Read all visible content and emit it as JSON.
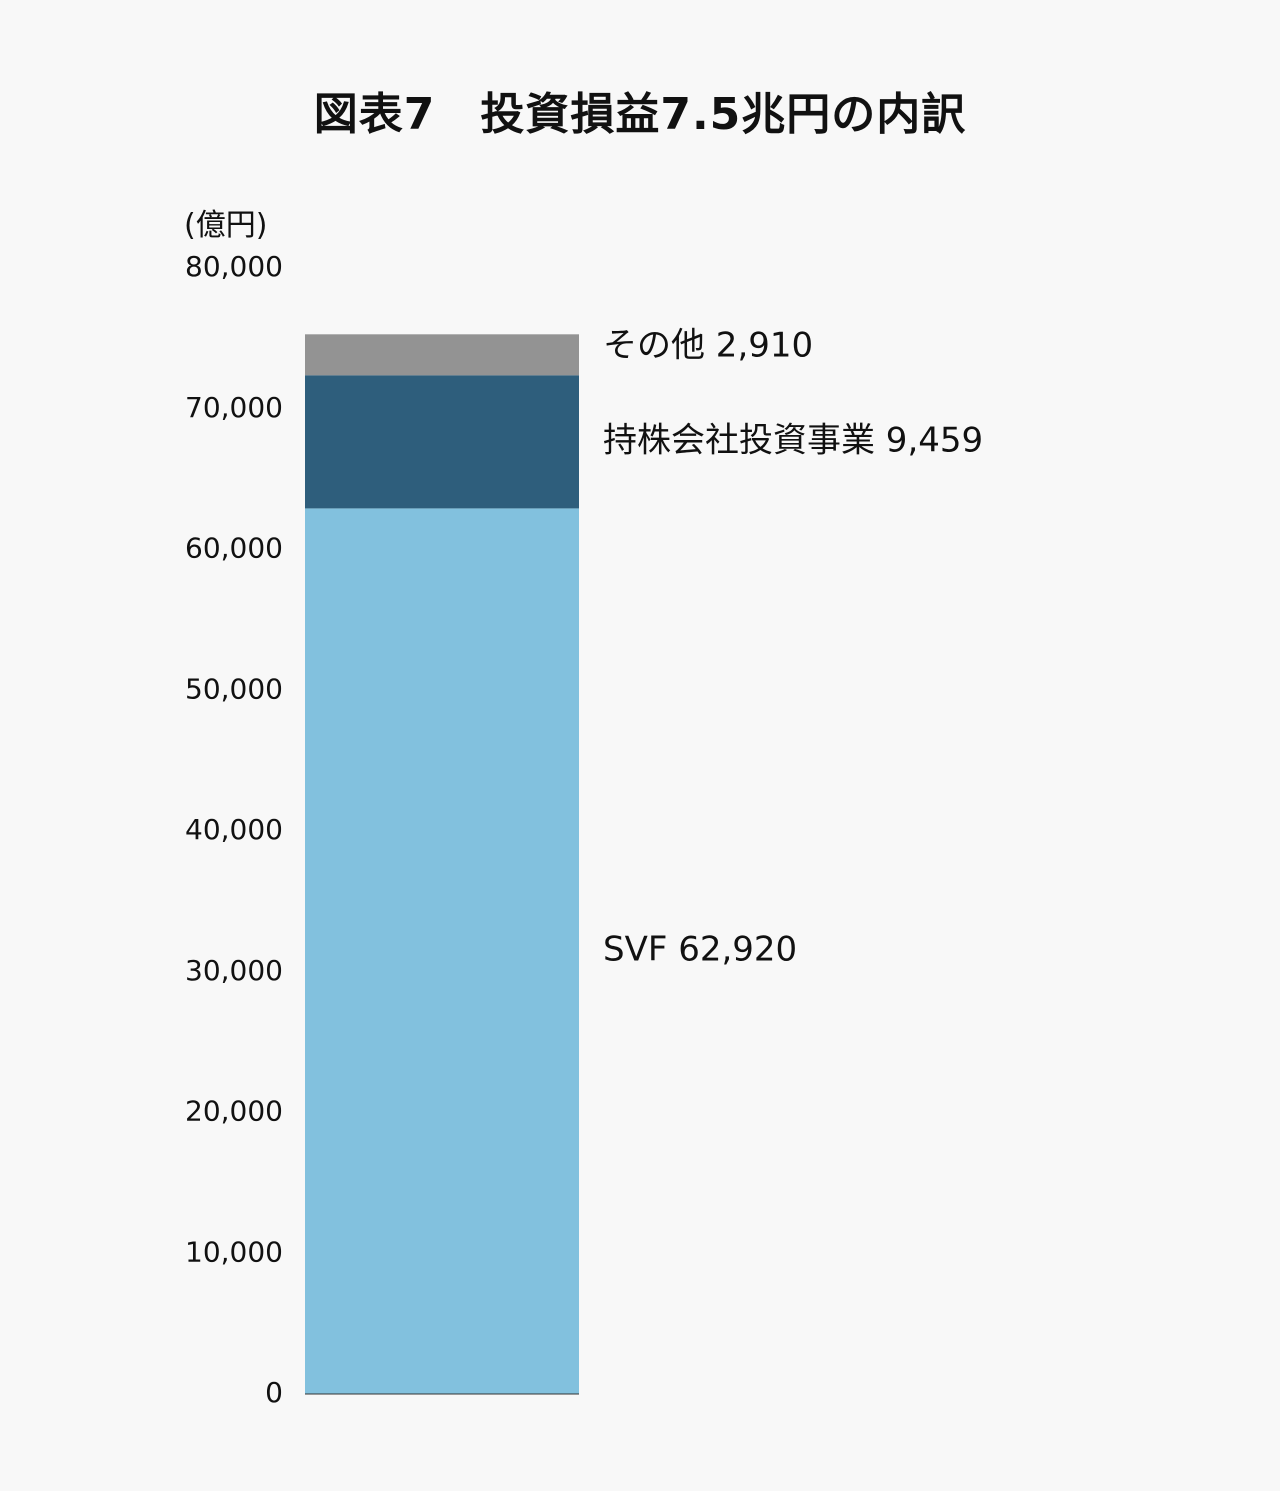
{
  "chart_data": {
    "type": "bar",
    "stacked": true,
    "title": "図表7　投資損益7.5兆円の内訳",
    "unit": "(億円)",
    "ylim": [
      0,
      80000
    ],
    "yticks": [
      0,
      10000,
      20000,
      30000,
      40000,
      50000,
      60000,
      70000,
      80000
    ],
    "ytick_labels": [
      "0",
      "10,000",
      "20,000",
      "30,000",
      "40,000",
      "50,000",
      "60,000",
      "70,000",
      "80,000"
    ],
    "grid": false,
    "series": [
      {
        "name": "SVF",
        "value": 62920,
        "label": "SVF 62,920",
        "color": "#82c1de"
      },
      {
        "name": "持株会社投資事業",
        "value": 9459,
        "label": "持株会社投資事業 9,459",
        "color": "#2e5e7c"
      },
      {
        "name": "その他",
        "value": 2910,
        "label": "その他 2,910",
        "color": "#939393"
      }
    ]
  }
}
